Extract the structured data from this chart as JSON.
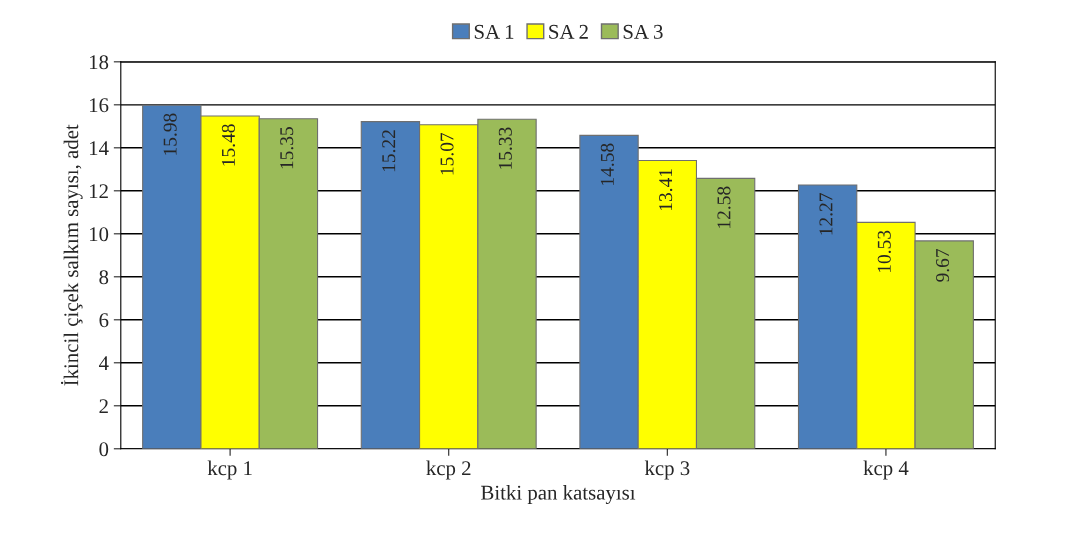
{
  "chart_data": {
    "type": "bar",
    "xlabel": "Bitki pan katsayısı",
    "ylabel": "İkincil çiçek salkım sayısı, adet",
    "categories": [
      "kcp 1",
      "kcp 2",
      "kcp 3",
      "kcp 4"
    ],
    "series": [
      {
        "name": "SA 1",
        "color": "#4a7ebb",
        "values": [
          15.98,
          15.22,
          14.58,
          12.27
        ]
      },
      {
        "name": "SA 2",
        "color": "#ffff00",
        "values": [
          15.48,
          15.07,
          13.41,
          10.53
        ]
      },
      {
        "name": "SA 3",
        "color": "#9bbb59",
        "values": [
          15.35,
          15.33,
          12.58,
          9.67
        ]
      }
    ],
    "ylim": [
      0,
      18
    ],
    "yticks": [
      0,
      2,
      4,
      6,
      8,
      10,
      12,
      14,
      16,
      18
    ],
    "grid": "y",
    "legend": "top",
    "data_labels": true
  }
}
